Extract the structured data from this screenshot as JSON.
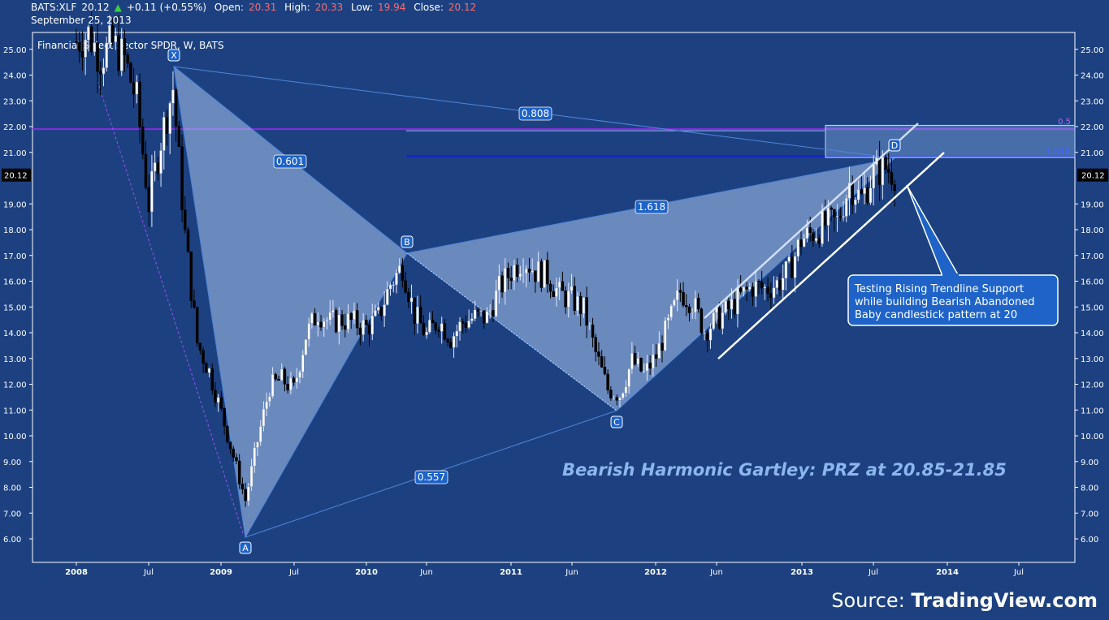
{
  "header": {
    "symbol": "BATS:XLF",
    "last": "20.12",
    "change": "+0.11 (+0.55%)",
    "open_label": "Open:",
    "open": "20.31",
    "high_label": "High:",
    "high": "20.33",
    "low_label": "Low:",
    "low": "19.94",
    "close_label": "Close:",
    "close": "20.12",
    "date": "September 25, 2013"
  },
  "source": {
    "prefix": "Source:",
    "brand": "TradingView.com"
  },
  "colors": {
    "background": "#1d4180",
    "pattern_fill": "#a9c4ec",
    "pattern_line": "#4d86dc",
    "label_bg": "#1f63c9",
    "purple_line": "#8a2be2",
    "blue_line": "#1020d0",
    "price_box": "#000000",
    "title_text": "#8db6ee"
  },
  "chart_data": {
    "type": "candlestick",
    "title": "Financial Select Sector SPDR, W, BATS",
    "xlabel": "",
    "ylabel": "",
    "ylim": [
      5.2,
      25.9
    ],
    "x_ticks": [
      "2008",
      "Jul",
      "2009",
      "Jul",
      "2010",
      "Jun",
      "2011",
      "Jun",
      "2012",
      "Jun",
      "2013",
      "Jul",
      "2014",
      "Jul"
    ],
    "y_ticks": [
      "25.00",
      "24.00",
      "23.00",
      "22.00",
      "21.00",
      "19.00",
      "18.00",
      "17.00",
      "16.00",
      "15.00",
      "14.00",
      "13.00",
      "12.00",
      "11.00",
      "10.00",
      "9.00",
      "8.00",
      "7.00",
      "6.00"
    ],
    "last_price": "20.12",
    "pattern": {
      "name": "Bearish Harmonic Gartley: PRZ at 20.85-21.85",
      "points": [
        {
          "label": "X",
          "date": "2008-09",
          "price": 24.3
        },
        {
          "label": "A",
          "date": "2009-03",
          "price": 6.1
        },
        {
          "label": "B",
          "date": "2010-04",
          "price": 17.1
        },
        {
          "label": "C",
          "date": "2011-10",
          "price": 11.0
        },
        {
          "label": "D",
          "date": "2013-08",
          "price": 20.8
        }
      ],
      "ratios": [
        "0.808",
        "0.601",
        "1.618",
        "0.557"
      ]
    },
    "levels": [
      {
        "label": "0.5",
        "price": 21.9
      },
      {
        "label": "1.618",
        "price": 20.85
      }
    ],
    "annotation": "Testing Rising Trendline Support while building Bearish Abandoned Baby candlestick pattern at 20",
    "annotation_lines": [
      "Testing Rising Trendline Support",
      "while building Bearish Abandoned",
      "Baby candlestick pattern at 20"
    ],
    "series": [
      {
        "values": [
          {
            "date": "2008-01",
            "price": 25.3
          },
          {
            "date": "2008-02",
            "price": 25.6
          },
          {
            "date": "2008-03",
            "price": 24.7
          },
          {
            "date": "2008-04",
            "price": 25.2
          },
          {
            "date": "2008-05",
            "price": 24.6
          },
          {
            "date": "2008-06",
            "price": 23.0
          },
          {
            "date": "2008-07",
            "price": 19.0
          },
          {
            "date": "2008-08",
            "price": 21.5
          },
          {
            "date": "2008-09",
            "price": 23.5
          },
          {
            "date": "2008-10",
            "price": 17.8
          },
          {
            "date": "2008-11",
            "price": 13.6
          },
          {
            "date": "2008-12",
            "price": 12.5
          },
          {
            "date": "2009-01",
            "price": 10.9
          },
          {
            "date": "2009-02",
            "price": 9.2
          },
          {
            "date": "2009-03",
            "price": 7.5
          },
          {
            "date": "2009-04",
            "price": 9.8
          },
          {
            "date": "2009-05",
            "price": 11.9
          },
          {
            "date": "2009-06",
            "price": 12.2
          },
          {
            "date": "2009-07",
            "price": 11.8
          },
          {
            "date": "2009-08",
            "price": 13.9
          },
          {
            "date": "2009-09",
            "price": 14.8
          },
          {
            "date": "2009-10",
            "price": 14.4
          },
          {
            "date": "2009-11",
            "price": 14.5
          },
          {
            "date": "2009-12",
            "price": 14.4
          },
          {
            "date": "2010-01",
            "price": 14.2
          },
          {
            "date": "2010-02",
            "price": 14.6
          },
          {
            "date": "2010-03",
            "price": 15.9
          },
          {
            "date": "2010-04",
            "price": 16.6
          },
          {
            "date": "2010-05",
            "price": 14.7
          },
          {
            "date": "2010-06",
            "price": 13.9
          },
          {
            "date": "2010-07",
            "price": 14.5
          },
          {
            "date": "2010-08",
            "price": 13.8
          },
          {
            "date": "2010-09",
            "price": 14.4
          },
          {
            "date": "2010-10",
            "price": 14.6
          },
          {
            "date": "2010-11",
            "price": 14.6
          },
          {
            "date": "2010-12",
            "price": 15.7
          },
          {
            "date": "2011-01",
            "price": 16.4
          },
          {
            "date": "2011-02",
            "price": 16.9
          },
          {
            "date": "2011-03",
            "price": 16.4
          },
          {
            "date": "2011-04",
            "price": 16.2
          },
          {
            "date": "2011-05",
            "price": 15.5
          },
          {
            "date": "2011-06",
            "price": 15.3
          },
          {
            "date": "2011-07",
            "price": 14.9
          },
          {
            "date": "2011-08",
            "price": 13.2
          },
          {
            "date": "2011-09",
            "price": 11.8
          },
          {
            "date": "2011-10",
            "price": 11.6
          },
          {
            "date": "2011-11",
            "price": 12.9
          },
          {
            "date": "2011-12",
            "price": 12.4
          },
          {
            "date": "2012-01",
            "price": 13.1
          },
          {
            "date": "2012-02",
            "price": 14.3
          },
          {
            "date": "2012-03",
            "price": 15.6
          },
          {
            "date": "2012-04",
            "price": 15.2
          },
          {
            "date": "2012-05",
            "price": 14.1
          },
          {
            "date": "2012-06",
            "price": 14.5
          },
          {
            "date": "2012-07",
            "price": 14.9
          },
          {
            "date": "2012-08",
            "price": 15.4
          },
          {
            "date": "2012-09",
            "price": 15.8
          },
          {
            "date": "2012-10",
            "price": 15.7
          },
          {
            "date": "2012-11",
            "price": 15.9
          },
          {
            "date": "2012-12",
            "price": 16.4
          },
          {
            "date": "2013-01",
            "price": 17.6
          },
          {
            "date": "2013-02",
            "price": 17.9
          },
          {
            "date": "2013-03",
            "price": 18.2
          },
          {
            "date": "2013-04",
            "price": 18.3
          },
          {
            "date": "2013-05",
            "price": 19.8
          },
          {
            "date": "2013-06",
            "price": 19.2
          },
          {
            "date": "2013-07",
            "price": 20.2
          },
          {
            "date": "2013-08",
            "price": 20.4
          },
          {
            "date": "2013-09",
            "price": 20.12
          }
        ]
      }
    ]
  }
}
